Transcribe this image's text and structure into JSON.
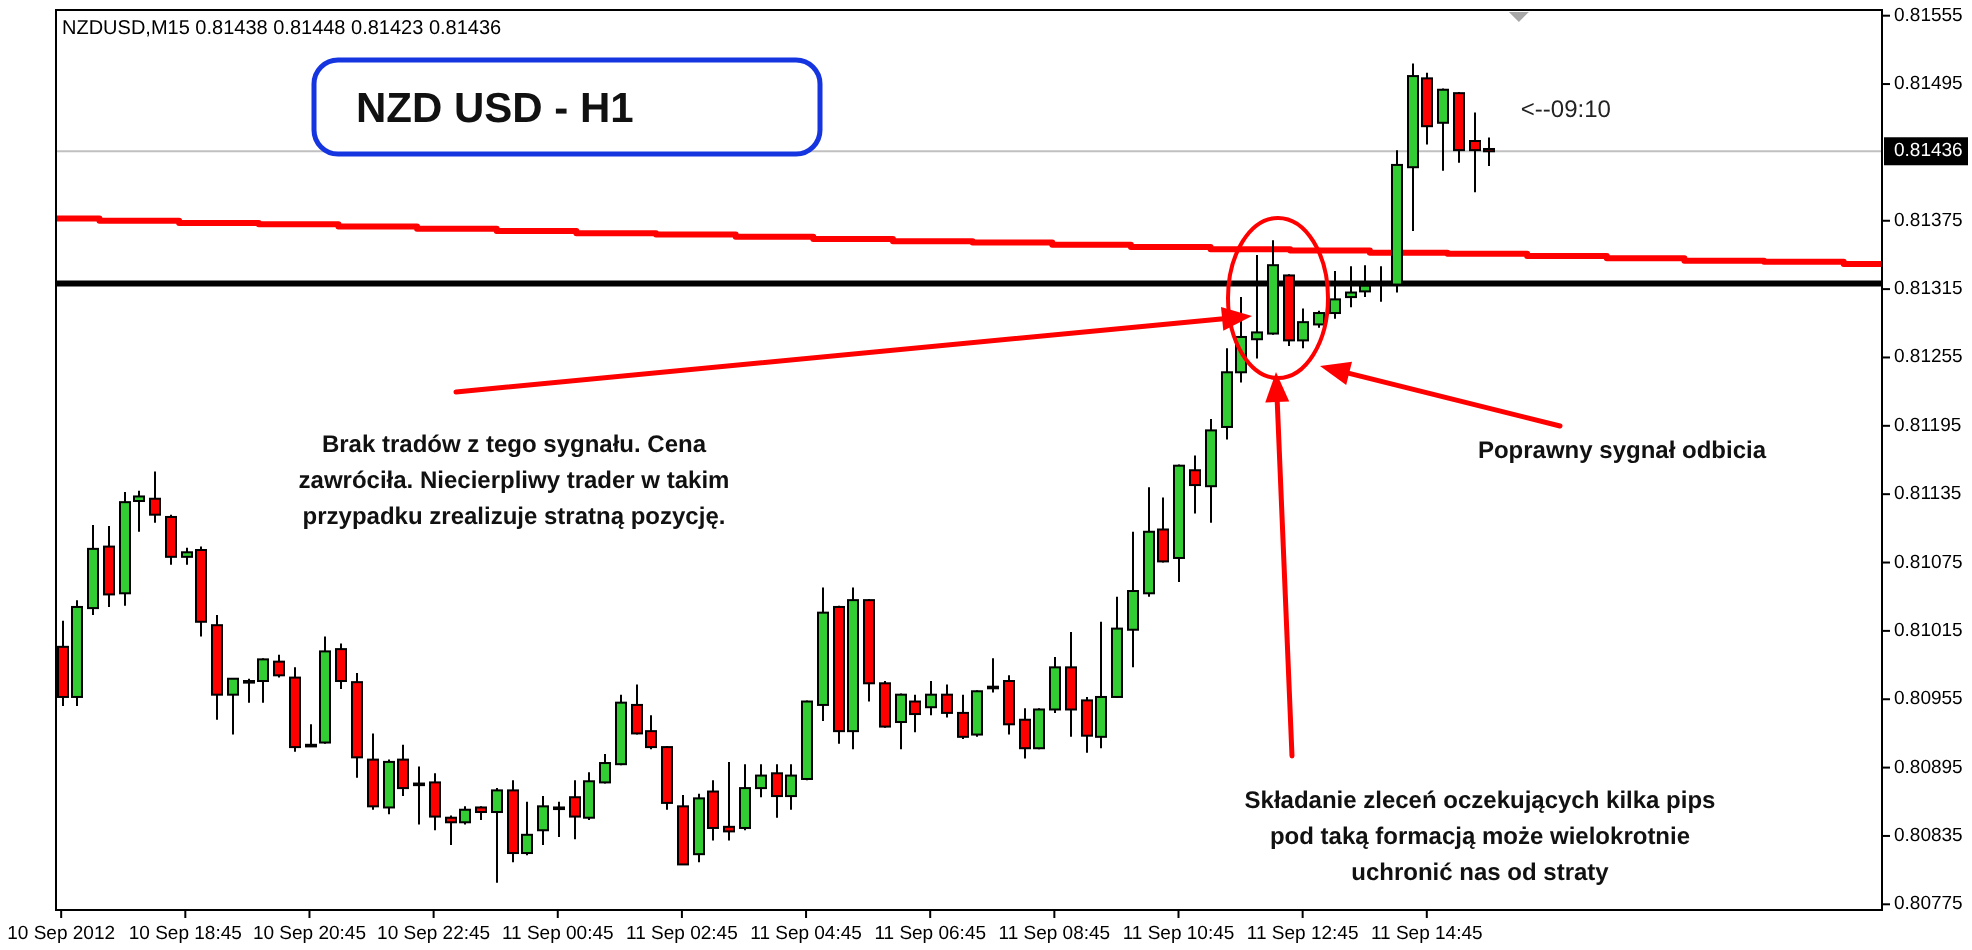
{
  "chart_data": {
    "type": "candlestick",
    "title": "NZD USD - H1",
    "subtitle": "NZDUSD,M15 0.81438 0.81448 0.81423 0.81436",
    "x": [
      "2012-09-10T16:45",
      "2012-09-10T17:00",
      "2012-09-10T17:15",
      "2012-09-10T17:30",
      "2012-09-10T17:45",
      "2012-09-10T18:00",
      "2012-09-10T18:15",
      "2012-09-10T18:30",
      "2012-09-10T18:45",
      "2012-09-10T19:00",
      "2012-09-10T19:15",
      "2012-09-10T19:30",
      "2012-09-10T19:45",
      "2012-09-10T20:00",
      "2012-09-10T20:15",
      "2012-09-10T20:30",
      "2012-09-10T20:45",
      "2012-09-10T21:00",
      "2012-09-10T21:15",
      "2012-09-10T21:30",
      "2012-09-10T21:45",
      "2012-09-10T22:00",
      "2012-09-10T22:15",
      "2012-09-10T22:30",
      "2012-09-10T22:45",
      "2012-09-10T23:00",
      "2012-09-10T23:15",
      "2012-09-10T23:30",
      "2012-09-10T23:45",
      "2012-09-11T00:00",
      "2012-09-11T00:15",
      "2012-09-11T00:30",
      "2012-09-11T00:45",
      "2012-09-11T01:00",
      "2012-09-11T01:15",
      "2012-09-11T01:30",
      "2012-09-11T01:45",
      "2012-09-11T02:00",
      "2012-09-11T02:15",
      "2012-09-11T02:30",
      "2012-09-11T02:45",
      "2012-09-11T03:00",
      "2012-09-11T03:15",
      "2012-09-11T03:30",
      "2012-09-11T03:45",
      "2012-09-11T04:00",
      "2012-09-11T04:15",
      "2012-09-11T04:30",
      "2012-09-11T04:45",
      "2012-09-11T05:00",
      "2012-09-11T05:15",
      "2012-09-11T05:30",
      "2012-09-11T05:45",
      "2012-09-11T06:00",
      "2012-09-11T06:15",
      "2012-09-11T06:30",
      "2012-09-11T06:45",
      "2012-09-11T07:00",
      "2012-09-11T07:15",
      "2012-09-11T07:30",
      "2012-09-11T07:45",
      "2012-09-11T08:00",
      "2012-09-11T08:15",
      "2012-09-11T08:30",
      "2012-09-11T08:45",
      "2012-09-11T09:00",
      "2012-09-11T09:15",
      "2012-09-11T09:30",
      "2012-09-11T09:45",
      "2012-09-11T10:00",
      "2012-09-11T10:15",
      "2012-09-11T10:30",
      "2012-09-11T10:45",
      "2012-09-11T11:00",
      "2012-09-11T11:15",
      "2012-09-11T11:30",
      "2012-09-11T11:45",
      "2012-09-11T12:00",
      "2012-09-11T12:15",
      "2012-09-11T12:30",
      "2012-09-11T12:45",
      "2012-09-11T13:00",
      "2012-09-11T13:15",
      "2012-09-11T13:30",
      "2012-09-11T13:45",
      "2012-09-11T14:00",
      "2012-09-11T14:15",
      "2012-09-11T14:30",
      "2012-09-11T14:45",
      "2012-09-11T15:00",
      "2012-09-11T15:15",
      "2012-09-11T15:30",
      "2012-09-11T15:45"
    ],
    "ohlc": [
      [
        0.81001,
        0.81024,
        0.80949,
        0.80957
      ],
      [
        0.80957,
        0.81042,
        0.80949,
        0.81036
      ],
      [
        0.81035,
        0.81108,
        0.81029,
        0.81087
      ],
      [
        0.81089,
        0.81107,
        0.81036,
        0.81047
      ],
      [
        0.81048,
        0.81137,
        0.81037,
        0.81128
      ],
      [
        0.81129,
        0.81138,
        0.81102,
        0.81133
      ],
      [
        0.81131,
        0.81155,
        0.8111,
        0.81117
      ],
      [
        0.81115,
        0.81117,
        0.81073,
        0.8108
      ],
      [
        0.8108,
        0.81088,
        0.81073,
        0.81084
      ],
      [
        0.81086,
        0.81089,
        0.8101,
        0.81023
      ],
      [
        0.8102,
        0.81029,
        0.80937,
        0.80959
      ],
      [
        0.80959,
        0.80973,
        0.80924,
        0.80973
      ],
      [
        0.80971,
        0.80973,
        0.80952,
        0.80971
      ],
      [
        0.80971,
        0.80991,
        0.80952,
        0.8099
      ],
      [
        0.80988,
        0.80994,
        0.80974,
        0.80976
      ],
      [
        0.80974,
        0.80983,
        0.80909,
        0.80913
      ],
      [
        0.80915,
        0.80933,
        0.80913,
        0.80915
      ],
      [
        0.80917,
        0.8101,
        0.80916,
        0.80997
      ],
      [
        0.80999,
        0.81004,
        0.80964,
        0.80971
      ],
      [
        0.8097,
        0.80978,
        0.80886,
        0.80904
      ],
      [
        0.80902,
        0.80925,
        0.80858,
        0.80861
      ],
      [
        0.8086,
        0.80902,
        0.80854,
        0.809
      ],
      [
        0.80902,
        0.80915,
        0.8087,
        0.80877
      ],
      [
        0.8088,
        0.80896,
        0.80845,
        0.80881
      ],
      [
        0.80882,
        0.8089,
        0.8084,
        0.80852
      ],
      [
        0.80851,
        0.80853,
        0.80827,
        0.80847
      ],
      [
        0.80847,
        0.80861,
        0.80845,
        0.80858
      ],
      [
        0.8086,
        0.80861,
        0.80849,
        0.80856
      ],
      [
        0.80856,
        0.80877,
        0.80794,
        0.80875
      ],
      [
        0.80875,
        0.80884,
        0.80812,
        0.8082
      ],
      [
        0.8082,
        0.80865,
        0.80818,
        0.80836
      ],
      [
        0.8084,
        0.8087,
        0.80827,
        0.80861
      ],
      [
        0.8086,
        0.80865,
        0.80834,
        0.8086
      ],
      [
        0.80869,
        0.80884,
        0.80832,
        0.80852
      ],
      [
        0.80851,
        0.80891,
        0.80849,
        0.80883
      ],
      [
        0.80882,
        0.80907,
        0.80881,
        0.80899
      ],
      [
        0.80898,
        0.80959,
        0.80897,
        0.80952
      ],
      [
        0.8095,
        0.80968,
        0.80924,
        0.80925
      ],
      [
        0.80927,
        0.80941,
        0.80911,
        0.80913
      ],
      [
        0.80913,
        0.80914,
        0.80858,
        0.80864
      ],
      [
        0.80861,
        0.80871,
        0.8081,
        0.8081
      ],
      [
        0.80819,
        0.80872,
        0.80812,
        0.80868
      ],
      [
        0.80874,
        0.80884,
        0.80831,
        0.80842
      ],
      [
        0.80843,
        0.809,
        0.80831,
        0.80839
      ],
      [
        0.80842,
        0.80898,
        0.8084,
        0.80877
      ],
      [
        0.80877,
        0.80898,
        0.80869,
        0.80888
      ],
      [
        0.8089,
        0.80898,
        0.80851,
        0.8087
      ],
      [
        0.8087,
        0.80898,
        0.80858,
        0.80888
      ],
      [
        0.80885,
        0.80954,
        0.80884,
        0.80953
      ],
      [
        0.8095,
        0.81053,
        0.80936,
        0.81031
      ],
      [
        0.81036,
        0.81037,
        0.80916,
        0.80927
      ],
      [
        0.80927,
        0.81053,
        0.80911,
        0.81042
      ],
      [
        0.81042,
        0.81043,
        0.80953,
        0.80969
      ],
      [
        0.80969,
        0.80971,
        0.8093,
        0.80931
      ],
      [
        0.80935,
        0.8096,
        0.80911,
        0.80959
      ],
      [
        0.80953,
        0.80959,
        0.80926,
        0.80942
      ],
      [
        0.80948,
        0.80971,
        0.80941,
        0.80959
      ],
      [
        0.80959,
        0.80968,
        0.80939,
        0.80943
      ],
      [
        0.80943,
        0.80959,
        0.8092,
        0.80922
      ],
      [
        0.80924,
        0.80963,
        0.80922,
        0.80962
      ],
      [
        0.80966,
        0.80991,
        0.80961,
        0.80966
      ],
      [
        0.80971,
        0.80976,
        0.80924,
        0.80933
      ],
      [
        0.80937,
        0.80947,
        0.80903,
        0.80912
      ],
      [
        0.80912,
        0.80947,
        0.80911,
        0.80946
      ],
      [
        0.80946,
        0.80992,
        0.80943,
        0.80983
      ],
      [
        0.80983,
        0.81014,
        0.80922,
        0.80946
      ],
      [
        0.80954,
        0.80957,
        0.80908,
        0.80923
      ],
      [
        0.80922,
        0.81023,
        0.80912,
        0.80957
      ],
      [
        0.80957,
        0.81045,
        0.80956,
        0.81017
      ],
      [
        0.81016,
        0.81102,
        0.80983,
        0.8105
      ],
      [
        0.81048,
        0.81141,
        0.81045,
        0.81102
      ],
      [
        0.81104,
        0.81132,
        0.81075,
        0.81076
      ],
      [
        0.81079,
        0.81161,
        0.81058,
        0.8116
      ],
      [
        0.81156,
        0.81169,
        0.81118,
        0.81143
      ],
      [
        0.81142,
        0.81201,
        0.8111,
        0.81191
      ],
      [
        0.81194,
        0.81263,
        0.81183,
        0.81242
      ],
      [
        0.81242,
        0.81308,
        0.81233,
        0.81273
      ],
      [
        0.81271,
        0.81345,
        0.81254,
        0.81277
      ],
      [
        0.81276,
        0.81358,
        0.81275,
        0.81336
      ],
      [
        0.81327,
        0.81328,
        0.81265,
        0.8127
      ],
      [
        0.8127,
        0.81298,
        0.81263,
        0.81286
      ],
      [
        0.81284,
        0.81296,
        0.81281,
        0.81294
      ],
      [
        0.81294,
        0.81331,
        0.81289,
        0.81306
      ],
      [
        0.81308,
        0.81335,
        0.81299,
        0.81312
      ],
      [
        0.81313,
        0.81336,
        0.81308,
        0.81318
      ],
      [
        0.8132,
        0.81335,
        0.81304,
        0.81321
      ],
      [
        0.81319,
        0.81437,
        0.81312,
        0.81424
      ],
      [
        0.81422,
        0.81513,
        0.81366,
        0.81502
      ],
      [
        0.815,
        0.81505,
        0.81442,
        0.81458
      ],
      [
        0.81461,
        0.81491,
        0.81419,
        0.8149
      ],
      [
        0.81487,
        0.81488,
        0.81426,
        0.81437
      ],
      [
        0.81445,
        0.8147,
        0.814,
        0.81437
      ],
      [
        0.81438,
        0.81448,
        0.81423,
        0.81436
      ]
    ],
    "colors": [
      "#ff0000",
      "#32cd32",
      "#32cd32",
      "#ff0000",
      "#32cd32",
      "#32cd32",
      "#ff0000",
      "#ff0000",
      "#32cd32",
      "#ff0000",
      "#ff0000",
      "#32cd32",
      "#32cd32",
      "#32cd32",
      "#ff0000",
      "#ff0000",
      "#32cd32",
      "#32cd32",
      "#ff0000",
      "#ff0000",
      "#ff0000",
      "#32cd32",
      "#ff0000",
      "#32cd32",
      "#ff0000",
      "#ff0000",
      "#32cd32",
      "#ff0000",
      "#32cd32",
      "#ff0000",
      "#32cd32",
      "#32cd32",
      "#32cd32",
      "#ff0000",
      "#32cd32",
      "#32cd32",
      "#32cd32",
      "#ff0000",
      "#ff0000",
      "#ff0000",
      "#ff0000",
      "#32cd32",
      "#ff0000",
      "#ff0000",
      "#32cd32",
      "#32cd32",
      "#ff0000",
      "#32cd32",
      "#32cd32",
      "#32cd32",
      "#ff0000",
      "#32cd32",
      "#ff0000",
      "#ff0000",
      "#32cd32",
      "#ff0000",
      "#32cd32",
      "#ff0000",
      "#ff0000",
      "#32cd32",
      "#32cd32",
      "#ff0000",
      "#ff0000",
      "#32cd32",
      "#32cd32",
      "#ff0000",
      "#ff0000",
      "#32cd32",
      "#32cd32",
      "#32cd32",
      "#32cd32",
      "#ff0000",
      "#32cd32",
      "#ff0000",
      "#32cd32",
      "#32cd32",
      "#32cd32",
      "#32cd32",
      "#32cd32",
      "#ff0000",
      "#32cd32",
      "#32cd32",
      "#32cd32",
      "#32cd32",
      "#32cd32",
      "#32cd32",
      "#32cd32",
      "#32cd32",
      "#ff0000",
      "#32cd32",
      "#ff0000",
      "#ff0000",
      "#ff0000"
    ],
    "series": [
      {
        "type": "step",
        "color": "#ff0000",
        "x": [
          "2012-09-10T16:40",
          "2012-09-10T17:22",
          "2012-09-10T18:39",
          "2012-09-10T19:56",
          "2012-09-10T21:13",
          "2012-09-10T22:29",
          "2012-09-10T23:46",
          "2012-09-11T01:03",
          "2012-09-11T02:20",
          "2012-09-11T03:37",
          "2012-09-11T04:52",
          "2012-09-11T06:09",
          "2012-09-11T07:26",
          "2012-09-11T08:43",
          "2012-09-11T09:59",
          "2012-09-11T11:16",
          "2012-09-11T12:33",
          "2012-09-11T13:50",
          "2012-09-11T15:05",
          "2012-09-11T16:22",
          "2012-09-11T17:39",
          "2012-09-11T18:54",
          "2012-09-11T20:11",
          "2012-09-11T21:28",
          "2012-09-11T22:05"
        ],
        "values": [
          0.81377,
          0.81375,
          0.81373,
          0.81372,
          0.8137,
          0.81368,
          0.81366,
          0.81364,
          0.81363,
          0.81361,
          0.81359,
          0.81357,
          0.81356,
          0.81354,
          0.81352,
          0.8135,
          0.81349,
          0.81347,
          0.81346,
          0.81344,
          0.81342,
          0.8134,
          0.81339,
          0.81337,
          0.81337
        ]
      }
    ],
    "xlim": [
      "2012-09-10T16:40",
      "2012-09-11T22:05"
    ],
    "xticks": [
      {
        "value": "2012-09-10T16:45",
        "label": "10 Sep 2012"
      },
      {
        "value": "2012-09-10T18:45",
        "label": "10 Sep 18:45"
      },
      {
        "value": "2012-09-10T20:45",
        "label": "10 Sep 20:45"
      },
      {
        "value": "2012-09-10T22:45",
        "label": "10 Sep 22:45"
      },
      {
        "value": "2012-09-11T00:45",
        "label": "11 Sep 00:45"
      },
      {
        "value": "2012-09-11T02:45",
        "label": "11 Sep 02:45"
      },
      {
        "value": "2012-09-11T04:45",
        "label": "11 Sep 04:45"
      },
      {
        "value": "2012-09-11T06:45",
        "label": "11 Sep 06:45"
      },
      {
        "value": "2012-09-11T08:45",
        "label": "11 Sep 08:45"
      },
      {
        "value": "2012-09-11T10:45",
        "label": "11 Sep 10:45"
      },
      {
        "value": "2012-09-11T12:45",
        "label": "11 Sep 12:45"
      },
      {
        "value": "2012-09-11T14:45",
        "label": "11 Sep 14:45"
      }
    ],
    "ylim": [
      0.8077,
      0.8156
    ],
    "yticks": [
      0.80775,
      0.80835,
      0.80895,
      0.80955,
      0.81015,
      0.81075,
      0.81135,
      0.81195,
      0.81255,
      0.81315,
      0.81375,
      0.81495,
      0.81555
    ],
    "ref_lines": [
      {
        "axis": "y",
        "value": 0.8132,
        "color": "#000000"
      },
      {
        "axis": "y",
        "value": 0.81436,
        "label": "0.81436",
        "color": "#c0c0c0"
      }
    ],
    "annotations": [
      "Brak tradów z tego sygnału. Cena\nzawróciła. Niecierpliwy trader w takim\nprzypadku zrealizuje stratną pozycję.",
      "Poprawny sygnał odbicia",
      "Składanie zleceń oczekujących kilka pips\npod taką formacją może wielokrotnie\nuchronić nas od straty",
      "<--09:10"
    ]
  }
}
